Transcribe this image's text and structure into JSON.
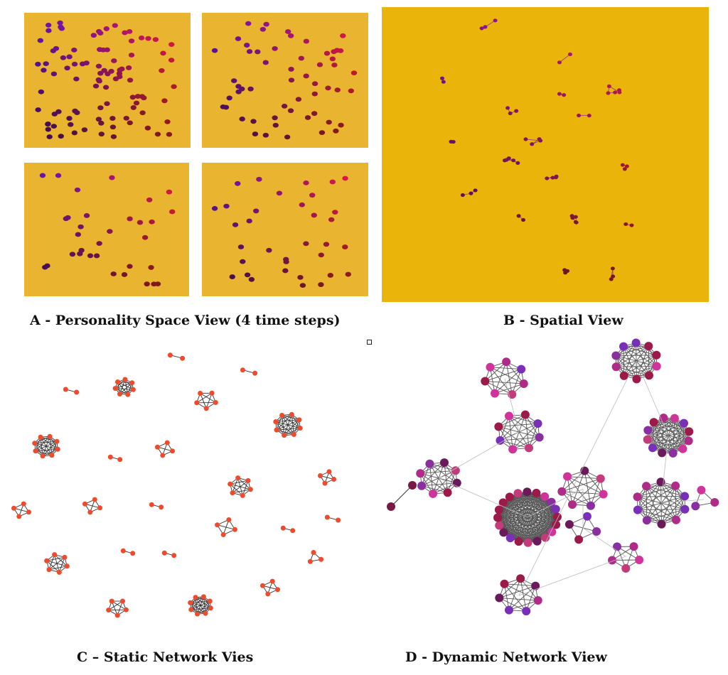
{
  "captions": {
    "a": "A - Personality Space View (4 time steps)",
    "b": "B - Spatial View",
    "c": "C – Static Network Vies",
    "d": "D - Dynamic Network View"
  },
  "colors": {
    "panel_gold": "#e9b42f",
    "spatial_gold": "#ebb40a",
    "node_red": "#ef4a2c",
    "edge_dark": "#333333",
    "edge_light": "#bbbbbb",
    "dot_purple": "#7a2fb8",
    "dot_pink": "#f03a8a",
    "dot_dark": "#5a0a2a"
  }
}
